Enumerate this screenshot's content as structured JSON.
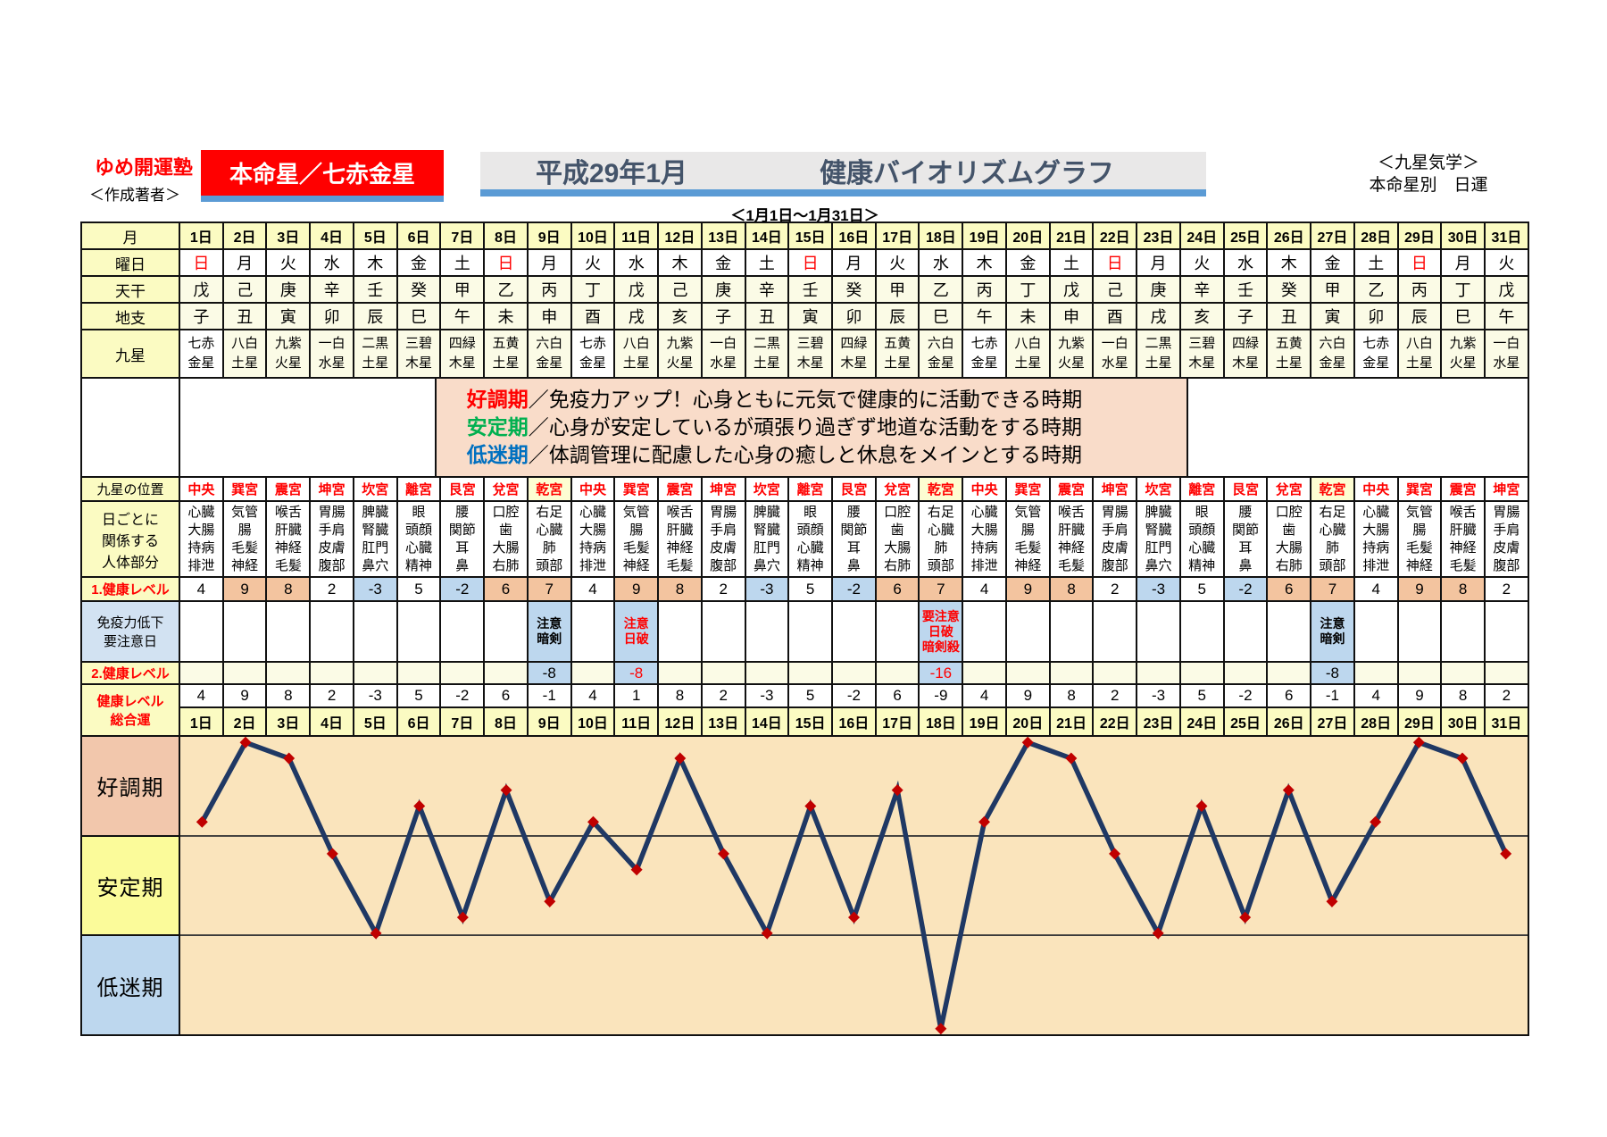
{
  "meta": {
    "honmei_star": "七赤金星",
    "highlight_palace": "乾宮"
  },
  "colors": {
    "red": "#FF0000",
    "header_yellow": "#FBFBC2",
    "cream": "#FBFBE6",
    "cell_high": "#F3C49F",
    "cell_low": "#BDD7EE",
    "immune_label_bg": "#D2E2F2",
    "legend_pink": "#F9DCC9",
    "palace_hl": "#FDFDD2",
    "slate": "#44546A",
    "underline_blue": "#5B9BD5"
  },
  "header": {
    "school": "ゆめ開運塾",
    "author": "＜作成著者＞",
    "honmei_badge": "本命星／七赤金星",
    "title_month": "平成29年1月",
    "title_main": "健康バイオリズムグラフ",
    "subtitle": "＜1月1日～1月31日＞",
    "right_line1": "＜九星気学＞",
    "right_line2": "本命星別　日運"
  },
  "legend": {
    "items": [
      {
        "term": "好調期",
        "color": "#FF0000",
        "desc": "／免疫力アップ！心身ともに元気で健康的に活動できる時期"
      },
      {
        "term": "安定期",
        "color": "#00B050",
        "desc": "／心身が安定しているが頑張り過ぎず地道な活動をする時期"
      },
      {
        "term": "低迷期",
        "color": "#0070C0",
        "desc": "／体調管理に配慮した心身の癒しと休息をメインとする時期"
      }
    ]
  },
  "row_labels": {
    "month": "月",
    "weekday": "曜日",
    "stem": "天干",
    "branch": "地支",
    "star": "九星",
    "position": "九星の位置",
    "body": "日ごとに\n関係する\n人体部分",
    "level1": "1.健康レベル",
    "immune": "免疫力低下\n要注意日",
    "level2": "2.健康レベル",
    "total": "健康レベル\n総合運"
  },
  "days": {
    "headers": [
      "1日",
      "2日",
      "3日",
      "4日",
      "5日",
      "6日",
      "7日",
      "8日",
      "9日",
      "10日",
      "11日",
      "12日",
      "13日",
      "14日",
      "15日",
      "16日",
      "17日",
      "18日",
      "19日",
      "20日",
      "21日",
      "22日",
      "23日",
      "24日",
      "25日",
      "26日",
      "27日",
      "28日",
      "29日",
      "30日",
      "31日"
    ],
    "weekdays": [
      "日",
      "月",
      "火",
      "水",
      "木",
      "金",
      "土",
      "日",
      "月",
      "火",
      "水",
      "木",
      "金",
      "土",
      "日",
      "月",
      "火",
      "水",
      "木",
      "金",
      "土",
      "日",
      "月",
      "火",
      "水",
      "木",
      "金",
      "土",
      "日",
      "月",
      "火"
    ],
    "stems": [
      "戊",
      "己",
      "庚",
      "辛",
      "壬",
      "癸",
      "甲",
      "乙",
      "丙",
      "丁",
      "戊",
      "己",
      "庚",
      "辛",
      "壬",
      "癸",
      "甲",
      "乙",
      "丙",
      "丁",
      "戊",
      "己",
      "庚",
      "辛",
      "壬",
      "癸",
      "甲",
      "乙",
      "丙",
      "丁",
      "戊"
    ],
    "branches": [
      "子",
      "丑",
      "寅",
      "卯",
      "辰",
      "巳",
      "午",
      "未",
      "申",
      "酉",
      "戌",
      "亥",
      "子",
      "丑",
      "寅",
      "卯",
      "辰",
      "巳",
      "午",
      "未",
      "申",
      "酉",
      "戌",
      "亥",
      "子",
      "丑",
      "寅",
      "卯",
      "辰",
      "巳",
      "午"
    ],
    "stars": [
      "七赤金星",
      "八白土星",
      "九紫火星",
      "一白水星",
      "二黒土星",
      "三碧木星",
      "四緑木星",
      "五黄土星",
      "六白金星",
      "七赤金星",
      "八白土星",
      "九紫火星",
      "一白水星",
      "二黒土星",
      "三碧木星",
      "四緑木星",
      "五黄土星",
      "六白金星",
      "七赤金星",
      "八白土星",
      "九紫火星",
      "一白水星",
      "二黒土星",
      "三碧木星",
      "四緑木星",
      "五黄土星",
      "六白金星",
      "七赤金星",
      "八白土星",
      "九紫火星",
      "一白水星"
    ],
    "positions": [
      "中央",
      "巽宮",
      "震宮",
      "坤宮",
      "坎宮",
      "離宮",
      "艮宮",
      "兌宮",
      "乾宮",
      "中央",
      "巽宮",
      "震宮",
      "坤宮",
      "坎宮",
      "離宮",
      "艮宮",
      "兌宮",
      "乾宮",
      "中央",
      "巽宮",
      "震宮",
      "坤宮",
      "坎宮",
      "離宮",
      "艮宮",
      "兌宮",
      "乾宮",
      "中央",
      "巽宮",
      "震宮",
      "坤宮"
    ]
  },
  "body_parts_by_position": {
    "中央": [
      "心臓",
      "大腸",
      "持病",
      "排泄"
    ],
    "巽宮": [
      "気管",
      "腸",
      "毛髪",
      "神経"
    ],
    "震宮": [
      "喉舌",
      "肝臓",
      "神経",
      "毛髪"
    ],
    "坤宮": [
      "胃腸",
      "手肩",
      "皮膚",
      "腹部"
    ],
    "坎宮": [
      "脾臓",
      "腎臓",
      "肛門",
      "鼻穴"
    ],
    "離宮": [
      "眼",
      "頭顔",
      "心臓",
      "精神"
    ],
    "艮宮": [
      "腰",
      "関節",
      "耳",
      "鼻"
    ],
    "兌宮": [
      "口腔",
      "歯",
      "大腸",
      "右肺"
    ],
    "乾宮": [
      "右足",
      "心臓",
      "肺",
      "頭部"
    ]
  },
  "levels": {
    "level1": [
      4,
      9,
      8,
      2,
      -3,
      5,
      -2,
      6,
      7,
      4,
      9,
      8,
      2,
      -3,
      5,
      -2,
      6,
      7,
      4,
      9,
      8,
      2,
      -3,
      5,
      -2,
      6,
      7,
      4,
      9,
      8,
      2
    ],
    "immune": {
      "9": {
        "lines": [
          "注意",
          "暗剣"
        ],
        "red": false
      },
      "11": {
        "lines": [
          "注意",
          "日破"
        ],
        "red": true
      },
      "18": {
        "lines": [
          "要注意",
          "日破",
          "暗剣殺"
        ],
        "red": true
      },
      "27": {
        "lines": [
          "注意",
          "暗剣"
        ],
        "red": false
      }
    },
    "level2": {
      "9": {
        "value": -8,
        "red": false
      },
      "11": {
        "value": -8,
        "red": true
      },
      "18": {
        "value": -16,
        "red": true
      },
      "27": {
        "value": -8,
        "red": false
      }
    }
  },
  "chart_data": {
    "type": "line",
    "title": "健康バイオリズムグラフ 平成29年1月",
    "x_labels": [
      "1日",
      "2日",
      "3日",
      "4日",
      "5日",
      "6日",
      "7日",
      "8日",
      "9日",
      "10日",
      "11日",
      "12日",
      "13日",
      "14日",
      "15日",
      "16日",
      "17日",
      "18日",
      "19日",
      "20日",
      "21日",
      "22日",
      "23日",
      "24日",
      "25日",
      "26日",
      "27日",
      "28日",
      "29日",
      "30日",
      "31日"
    ],
    "series": [
      {
        "name": "健康レベル総合運",
        "values": [
          4,
          9,
          8,
          2,
          -3,
          5,
          -2,
          6,
          -1,
          4,
          1,
          8,
          2,
          -3,
          5,
          -2,
          6,
          -9,
          4,
          9,
          8,
          2,
          -3,
          5,
          -2,
          6,
          -1,
          4,
          9,
          8,
          2
        ]
      }
    ],
    "ylim": [
      -9.4,
      9.4
    ],
    "zones": [
      {
        "label": "好調期",
        "range": [
          3,
          9
        ],
        "color": "#F2C7AC"
      },
      {
        "label": "安定期",
        "range": [
          -3,
          3
        ],
        "color": "#FBFB9A"
      },
      {
        "label": "低迷期",
        "range": [
          -9,
          -3
        ],
        "color": "#BDD7EE"
      }
    ],
    "plot_bg": "#FAE4BC",
    "line_color": "#1F3864",
    "marker": "diamond",
    "marker_color": "#C00000",
    "grid": "zone-boundaries-only",
    "legend_position": "left-zone-labels"
  }
}
